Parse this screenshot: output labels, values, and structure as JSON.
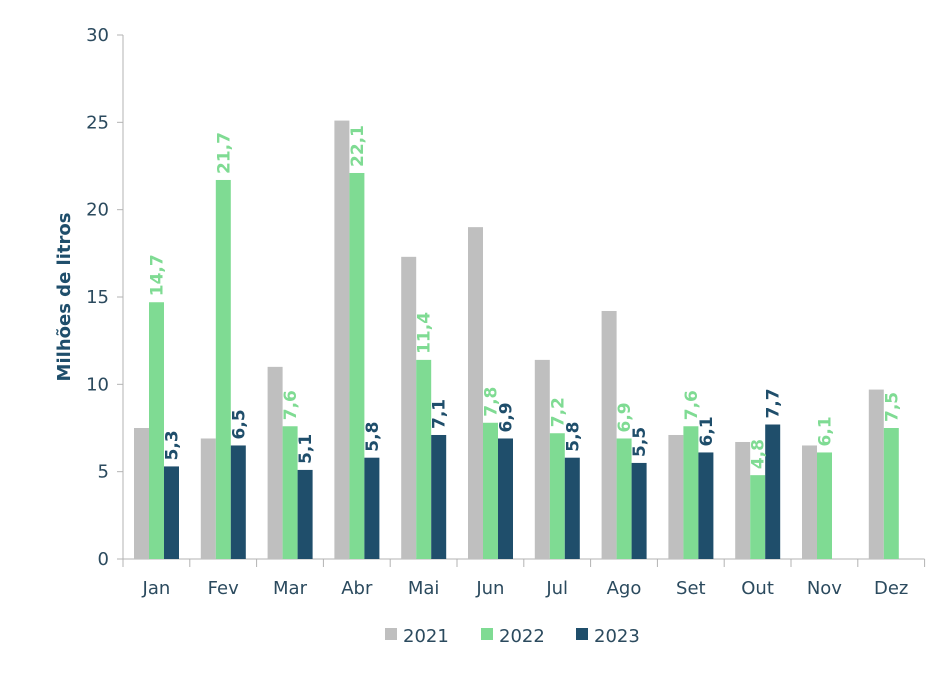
{
  "chart_data": {
    "type": "bar",
    "ylabel": "Milhões de litros",
    "xlabel": "",
    "ylim": [
      0,
      30
    ],
    "yticks": [
      0,
      5,
      10,
      15,
      20,
      25,
      30
    ],
    "grid": false,
    "legend_position": "bottom",
    "categories": [
      "Jan",
      "Fev",
      "Mar",
      "Abr",
      "Mai",
      "Jun",
      "Jul",
      "Ago",
      "Set",
      "Out",
      "Nov",
      "Dez"
    ],
    "series": [
      {
        "name": "2021",
        "color": "#bfbfbf",
        "labeled": false,
        "values": [
          7.5,
          6.9,
          11.0,
          25.1,
          17.3,
          19.0,
          11.4,
          14.2,
          7.1,
          6.7,
          6.5,
          9.7
        ],
        "labels": []
      },
      {
        "name": "2022",
        "color": "#7fdb93",
        "labeled": true,
        "values": [
          14.7,
          21.7,
          7.6,
          22.1,
          11.4,
          7.8,
          7.2,
          6.9,
          7.6,
          4.8,
          6.1,
          7.5
        ],
        "labels": [
          "14,7",
          "21,7",
          "7,6",
          "22,1",
          "11,4",
          "7,8",
          "7,2",
          "6,9",
          "7,6",
          "4,8",
          "6,1",
          "7,5"
        ]
      },
      {
        "name": "2023",
        "color": "#1f4e6b",
        "labeled": true,
        "values": [
          5.3,
          6.5,
          5.1,
          5.8,
          7.1,
          6.9,
          5.8,
          5.5,
          6.1,
          7.7,
          null,
          null
        ],
        "labels": [
          "5,3",
          "6,5",
          "5,1",
          "5,8",
          "7,1",
          "6,9",
          "5,8",
          "5,5",
          "6,1",
          "7,7",
          "",
          ""
        ]
      }
    ]
  }
}
